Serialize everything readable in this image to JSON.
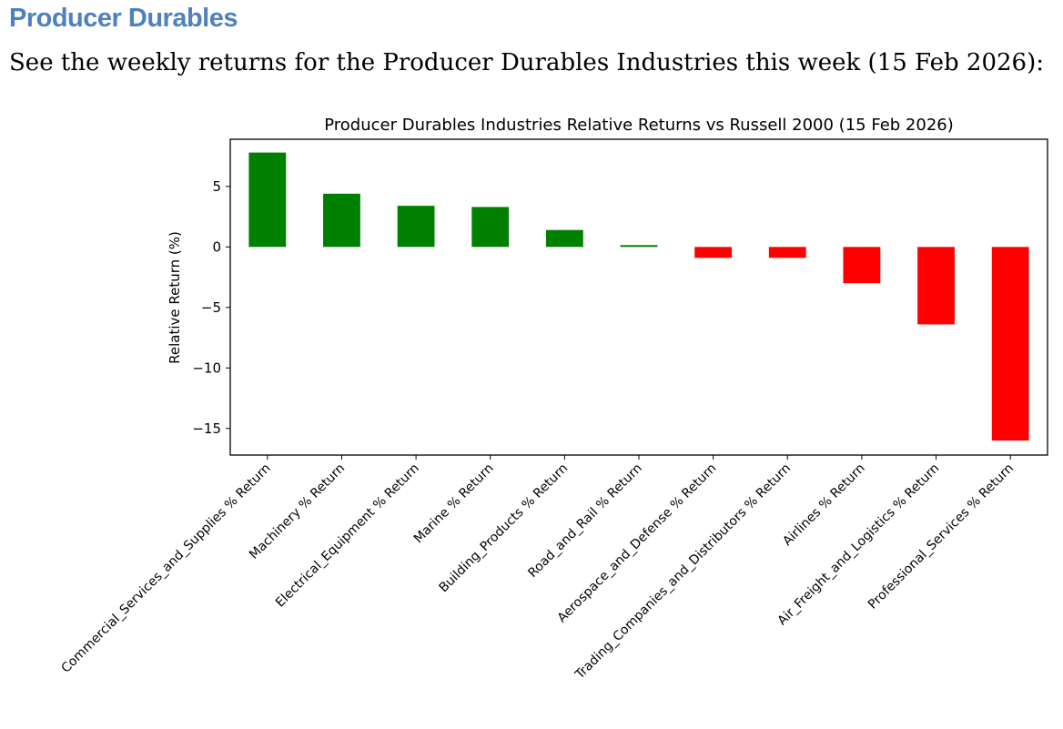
{
  "page": {
    "heading": "Producer Durables",
    "intro": "See the weekly returns for the Producer Durables Industries this week (15 Feb 2026):"
  },
  "colors": {
    "positive": "#008000",
    "negative": "#ff0000",
    "heading": "#4f81bd"
  },
  "chart_data": {
    "type": "bar",
    "title": "Producer Durables Industries Relative Returns vs Russell 2000 (15 Feb 2026)",
    "xlabel": "",
    "ylabel": "Relative Return (%)",
    "ylim": [
      -17.2,
      8.9
    ],
    "yticks": [
      5,
      0,
      -5,
      -10,
      -15
    ],
    "ytick_labels": [
      "5",
      "0",
      "−5",
      "−10",
      "−15"
    ],
    "categories": [
      "Commercial_Services_and_Supplies % Return",
      "Machinery % Return",
      "Electrical_Equipment % Return",
      "Marine % Return",
      "Building_Products % Return",
      "Road_and_Rail % Return",
      "Aerospace_and_Defense % Return",
      "Trading_Companies_and_Distributors % Return",
      "Airlines % Return",
      "Air_Freight_and_Logistics % Return",
      "Professional_Services % Return"
    ],
    "values": [
      7.8,
      4.4,
      3.4,
      3.3,
      1.4,
      0.15,
      -0.9,
      -0.9,
      -3.0,
      -6.4,
      -16.0
    ],
    "grid": false,
    "legend": false
  }
}
